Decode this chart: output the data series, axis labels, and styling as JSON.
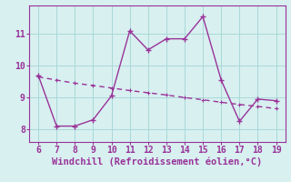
{
  "x": [
    6,
    7,
    8,
    9,
    10,
    11,
    12,
    13,
    14,
    15,
    16,
    17,
    18,
    19
  ],
  "y_main": [
    9.7,
    8.1,
    8.1,
    8.3,
    9.05,
    11.1,
    10.5,
    10.85,
    10.85,
    11.55,
    9.55,
    8.25,
    8.95,
    8.9
  ],
  "y_trend": [
    9.65,
    9.55,
    9.45,
    9.38,
    9.3,
    9.22,
    9.15,
    9.08,
    9.0,
    8.93,
    8.85,
    8.78,
    8.72,
    8.65
  ],
  "color_main": "#993399",
  "background_color": "#d8f0f0",
  "grid_color": "#aad8d8",
  "xlabel": "Windchill (Refroidissement éolien,°C)",
  "xlim": [
    5.5,
    19.5
  ],
  "ylim": [
    7.6,
    11.9
  ],
  "xticks": [
    6,
    7,
    8,
    9,
    10,
    11,
    12,
    13,
    14,
    15,
    16,
    17,
    18,
    19
  ],
  "yticks": [
    8,
    9,
    10,
    11
  ],
  "tick_fontsize": 7,
  "xlabel_fontsize": 7.5,
  "line_width": 1.0,
  "marker": "+"
}
